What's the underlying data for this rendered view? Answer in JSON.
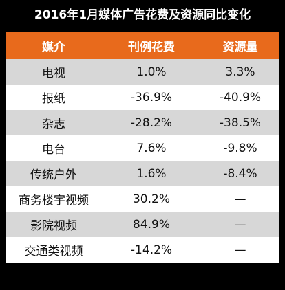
{
  "title": "2016年1月媒体广告花费及资源同比变化",
  "colors": {
    "background": "#000000",
    "header": "#e86a1c",
    "shaded_row": "#d7d7d7",
    "plain_row": "#ffffff"
  },
  "columns": [
    "媒介",
    "刊例花费",
    "资源量"
  ],
  "rows": [
    {
      "media": "电视",
      "spend": "1.0%",
      "resource": "3.3%"
    },
    {
      "media": "报纸",
      "spend": "-36.9%",
      "resource": "-40.9%"
    },
    {
      "media": "杂志",
      "spend": "-28.2%",
      "resource": "-38.5%"
    },
    {
      "media": "电台",
      "spend": "7.6%",
      "resource": "-9.8%"
    },
    {
      "media": "传统户外",
      "spend": "1.6%",
      "resource": "-8.4%"
    },
    {
      "media": "商务楼宇视频",
      "spend": "30.2%",
      "resource": "—"
    },
    {
      "media": "影院视频",
      "spend": "84.9%",
      "resource": "—"
    },
    {
      "media": "交通类视频",
      "spend": "-14.2%",
      "resource": "—"
    }
  ]
}
